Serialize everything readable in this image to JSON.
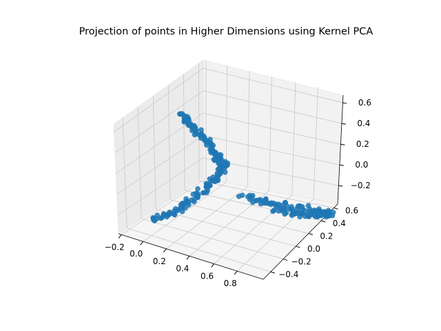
{
  "chart_data": {
    "type": "scatter",
    "projection": "3d",
    "title": "Projection of points in Higher Dimensions using Kernel PCA",
    "xlabel": "",
    "ylabel": "",
    "zlabel": "",
    "grid": true,
    "legend": "none",
    "series_color": "#1f77b4",
    "x_ticks": [
      "−0.2",
      "0.0",
      "0.2",
      "0.4",
      "0.6",
      "0.8"
    ],
    "y_ticks": [
      "−0.4",
      "−0.2",
      "0.0",
      "0.2",
      "0.4",
      "0.6"
    ],
    "z_ticks": [
      "−0.2",
      "0.0",
      "0.2",
      "0.4",
      "0.6"
    ],
    "xlim": [
      -0.25,
      0.9
    ],
    "ylim": [
      -0.5,
      0.7
    ],
    "zlim": [
      -0.4,
      0.75
    ],
    "clusters": [
      {
        "description": "upper arm along the back-left wall",
        "path": [
          [
            0.0,
            0.0,
            0.7
          ],
          [
            0.05,
            0.05,
            0.58
          ],
          [
            0.12,
            0.1,
            0.45
          ],
          [
            0.2,
            0.12,
            0.3
          ],
          [
            0.25,
            0.15,
            0.2
          ],
          [
            0.18,
            0.1,
            0.05
          ]
        ]
      },
      {
        "description": "lower-left arm toward the front corner",
        "path": [
          [
            0.18,
            0.1,
            0.05
          ],
          [
            0.1,
            0.0,
            -0.1
          ],
          [
            0.0,
            -0.1,
            -0.25
          ],
          [
            -0.15,
            -0.2,
            -0.35
          ]
        ]
      },
      {
        "description": "right loop near the floor",
        "path": [
          [
            0.35,
            0.2,
            -0.1
          ],
          [
            0.55,
            0.3,
            -0.15
          ],
          [
            0.75,
            0.45,
            -0.2
          ],
          [
            0.85,
            0.55,
            -0.25
          ],
          [
            0.7,
            0.5,
            -0.3
          ],
          [
            0.5,
            0.35,
            -0.25
          ]
        ]
      }
    ]
  }
}
